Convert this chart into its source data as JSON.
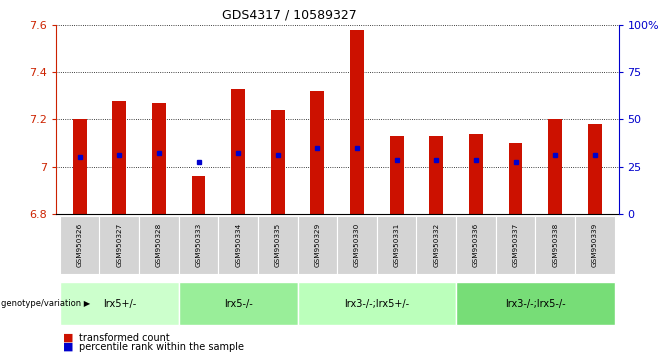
{
  "title": "GDS4317 / 10589327",
  "samples": [
    "GSM950326",
    "GSM950327",
    "GSM950328",
    "GSM950333",
    "GSM950334",
    "GSM950335",
    "GSM950329",
    "GSM950330",
    "GSM950331",
    "GSM950332",
    "GSM950336",
    "GSM950337",
    "GSM950338",
    "GSM950339"
  ],
  "bar_heights": [
    7.2,
    7.28,
    7.27,
    6.96,
    7.33,
    7.24,
    7.32,
    7.58,
    7.13,
    7.13,
    7.14,
    7.1,
    7.2,
    7.18
  ],
  "percentile_values": [
    7.04,
    7.05,
    7.06,
    7.02,
    7.06,
    7.05,
    7.08,
    7.08,
    7.03,
    7.03,
    7.03,
    7.02,
    7.05,
    7.05
  ],
  "ymin": 6.8,
  "ymax": 7.6,
  "bar_color": "#cc1100",
  "dot_color": "#0000cc",
  "group_defs": [
    {
      "label": "lrx5+/-",
      "start": 0,
      "end": 2,
      "color": "#ccffcc"
    },
    {
      "label": "lrx5-/-",
      "start": 3,
      "end": 5,
      "color": "#99ee99"
    },
    {
      "label": "lrx3-/-;lrx5+/-",
      "start": 6,
      "end": 9,
      "color": "#bbffbb"
    },
    {
      "label": "lrx3-/-;lrx5-/-",
      "start": 10,
      "end": 13,
      "color": "#77dd77"
    }
  ],
  "legend_items": [
    {
      "label": "transformed count",
      "color": "#cc1100"
    },
    {
      "label": "percentile rank within the sample",
      "color": "#0000cc"
    }
  ],
  "genotype_label": "genotype/variation",
  "background_color": "#ffffff",
  "tick_color_left": "#cc2200",
  "tick_color_right": "#0000cc",
  "right_yticks": [
    0,
    25,
    50,
    75,
    100
  ],
  "right_yticklabels": [
    "0",
    "25",
    "50",
    "75",
    "100%"
  ],
  "left_yticks": [
    6.8,
    7.0,
    7.2,
    7.4,
    7.6
  ],
  "left_yticklabels": [
    "6.8",
    "7",
    "7.2",
    "7.4",
    "7.6"
  ],
  "bar_width": 0.35
}
